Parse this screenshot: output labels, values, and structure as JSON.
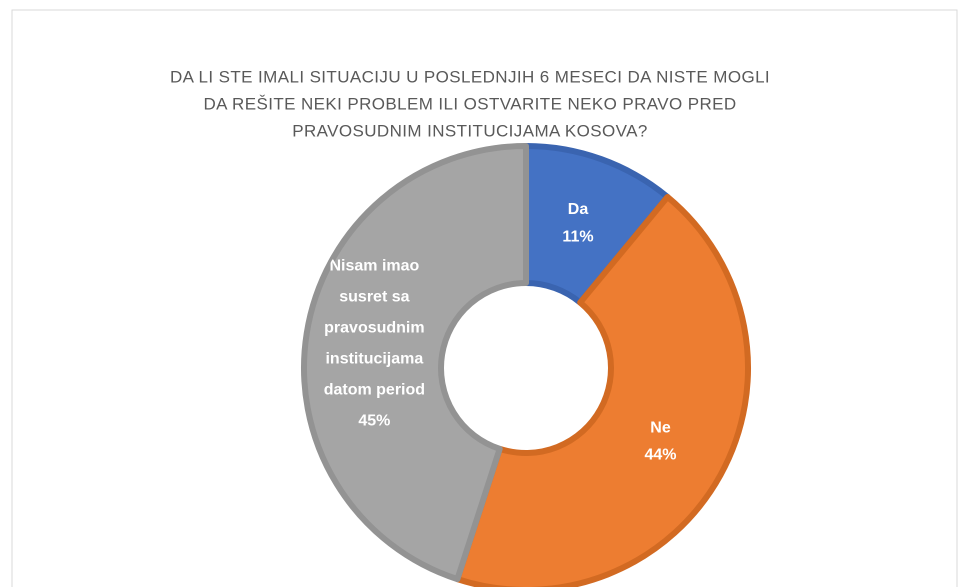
{
  "chart_data": {
    "type": "donut",
    "title": [
      "DA LI STE IMALI SITUACIJU U POSLEDNJIH 6 MESECI DA NISTE MOGLI",
      "DA REŠITE NEKI PROBLEM  ILI OSTVARITE NEKO PRAVO PRED",
      "PRAVOSUDNIM INSTITUCIJAMA KOSOVA?"
    ],
    "categories": [
      "Da",
      "Ne",
      "Nisam imao susret sa pravosudnim institucijama datom period"
    ],
    "values": [
      11,
      44,
      45
    ],
    "value_labels": [
      "11%",
      "44%",
      "45%"
    ],
    "colors": [
      "#4472c4",
      "#ed7d31",
      "#a5a5a5"
    ],
    "edge_colors": [
      "#3a64b0",
      "#d26a22",
      "#939393"
    ]
  }
}
